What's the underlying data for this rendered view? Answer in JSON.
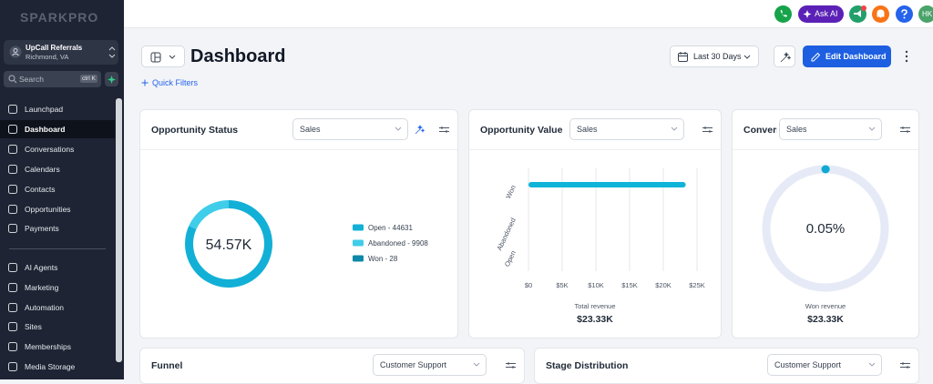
{
  "sidebar": {
    "logo": "SPARKPRO",
    "account": {
      "name": "UpCall Referrals",
      "location": "Richmond, VA"
    },
    "search": {
      "placeholder": "Search",
      "shortcut": "ctrl K"
    },
    "nav": [
      "Launchpad",
      "Dashboard",
      "Conversations",
      "Calendars",
      "Contacts",
      "Opportunities",
      "Payments"
    ],
    "active_nav": 1,
    "nav2": [
      "AI Agents",
      "Marketing",
      "Automation",
      "Sites",
      "Memberships",
      "Media Storage"
    ]
  },
  "topbar": {
    "ask_ai": "Ask AI",
    "avatar": "HK"
  },
  "header": {
    "title": "Dashboard",
    "date_range": "Last 30 Days",
    "edit": "Edit Dashboard",
    "quick_filters": "Quick Filters"
  },
  "widgets": [
    {
      "title": "Opportunity Status",
      "filter": "Sales",
      "chart": {
        "type": "donut",
        "center_label": "54.57K",
        "series": [
          {
            "name": "Open - 44631",
            "value": 44631,
            "color": "#12b0d6"
          },
          {
            "name": "Abandoned - 9908",
            "value": 9908,
            "color": "#40cde9"
          },
          {
            "name": "Won - 28",
            "value": 28,
            "color": "#0d88a8"
          }
        ]
      }
    },
    {
      "title": "Opportunity Value",
      "filter": "Sales",
      "chart": {
        "type": "hbar",
        "categories": [
          "Won",
          "Abandoned",
          "Open"
        ],
        "values": [
          23330,
          0,
          0
        ],
        "color": "#10b4d8",
        "xlim": [
          0,
          25000
        ],
        "xticks": [
          {
            "value": 0,
            "label": "$0"
          },
          {
            "value": 5000,
            "label": "$5K"
          },
          {
            "value": 10000,
            "label": "$10K"
          },
          {
            "value": 15000,
            "label": "$15K"
          },
          {
            "value": 20000,
            "label": "$20K"
          },
          {
            "value": 25000,
            "label": "$25K"
          }
        ],
        "grid": true,
        "xlabel": "Total revenue",
        "total": "$23.33K"
      }
    },
    {
      "title": "Conversion",
      "filter": "Sales",
      "chart": {
        "type": "gauge",
        "values": [
          0.05
        ],
        "value_labels": [
          "0.05%"
        ],
        "ylim": [
          0,
          100
        ],
        "color": "#10a9d2",
        "label": "Won revenue",
        "total": "$23.33K"
      }
    },
    {
      "title": "Funnel",
      "filter": "Customer Support"
    },
    {
      "title": "Stage Distribution",
      "filter": "Customer Support"
    }
  ]
}
